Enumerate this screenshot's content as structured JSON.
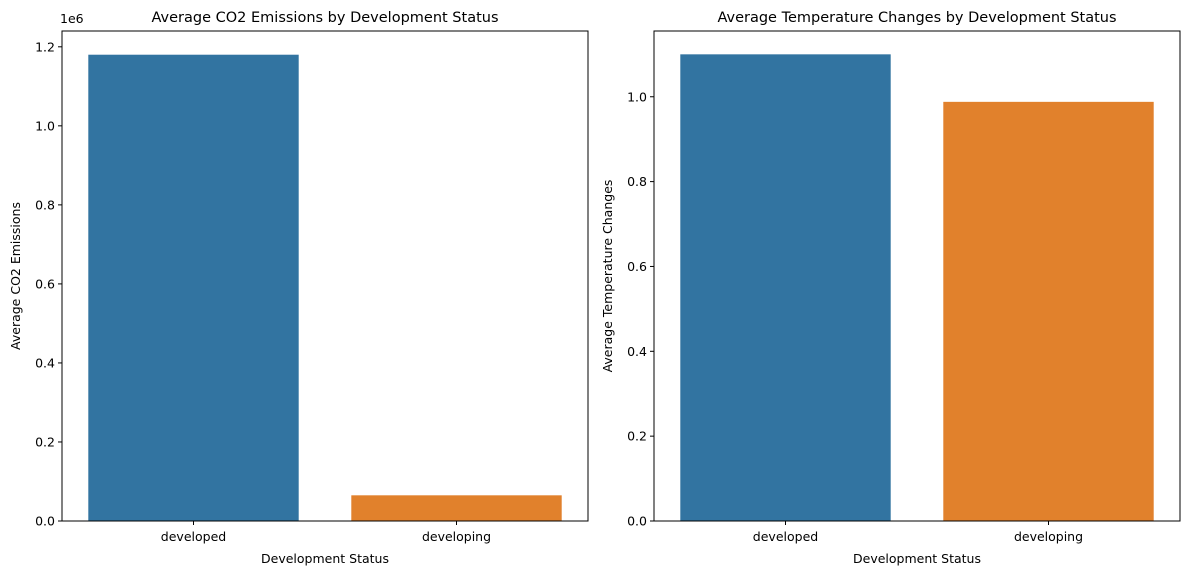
{
  "chart_data": [
    {
      "type": "bar",
      "title": "Average CO2 Emissions by Development Status",
      "xlabel": "Development Status",
      "ylabel": "Average CO2 Emissions",
      "y_offset_label": "1e6",
      "categories": [
        "developed",
        "developing"
      ],
      "values": [
        1180000,
        65000
      ],
      "colors": [
        "#3274a1",
        "#e1812c"
      ],
      "ylim": [
        0,
        1240000
      ],
      "yticks": [
        0,
        200000,
        400000,
        600000,
        800000,
        1000000,
        1200000
      ],
      "ytick_labels": [
        "0.0",
        "0.2",
        "0.4",
        "0.6",
        "0.8",
        "1.0",
        "1.2"
      ],
      "grid": false
    },
    {
      "type": "bar",
      "title": "Average Temperature Changes by Development Status",
      "xlabel": "Development Status",
      "ylabel": "Average Temperature Changes",
      "categories": [
        "developed",
        "developing"
      ],
      "values": [
        1.1,
        0.988
      ],
      "colors": [
        "#3274a1",
        "#e1812c"
      ],
      "ylim": [
        0,
        1.155
      ],
      "yticks": [
        0,
        0.2,
        0.4,
        0.6,
        0.8,
        1.0
      ],
      "ytick_labels": [
        "0.0",
        "0.2",
        "0.4",
        "0.6",
        "0.8",
        "1.0"
      ],
      "grid": false
    }
  ]
}
